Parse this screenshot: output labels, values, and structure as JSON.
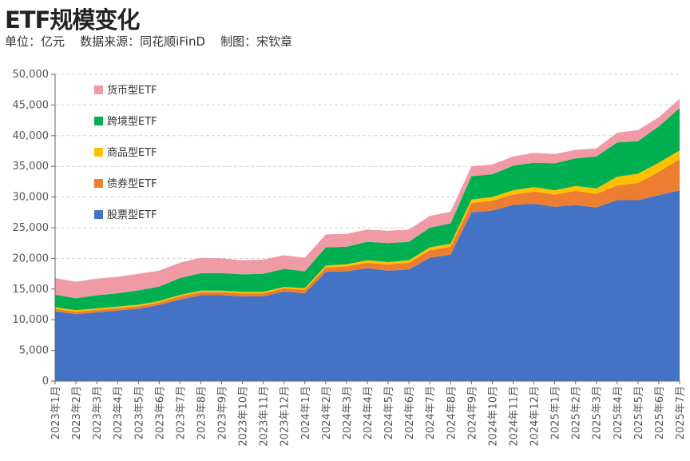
{
  "title": "ETF规模变化",
  "subtitle": "单位：亿元    数据来源：同花顺iFinD    制图：宋钦章",
  "chart_data": {
    "type": "area",
    "stacked": true,
    "title": "ETF规模变化",
    "ylabel": "亿元",
    "ylim": [
      0,
      50000
    ],
    "yticks": [
      0,
      5000,
      10000,
      15000,
      20000,
      25000,
      30000,
      35000,
      40000,
      45000,
      50000
    ],
    "ytick_labels": [
      "0",
      "5,000",
      "10,000",
      "15,000",
      "20,000",
      "25,000",
      "30,000",
      "35,000",
      "40,000",
      "45,000",
      "50,000"
    ],
    "grid": true,
    "legend_position": "top-left",
    "categories": [
      "2023年1月",
      "2023年2月",
      "2023年3月",
      "2023年4月",
      "2023年5月",
      "2023年6月",
      "2023年7月",
      "2023年8月",
      "2023年9月",
      "2023年10月",
      "2023年11月",
      "2023年12月",
      "2024年1月",
      "2024年2月",
      "2024年3月",
      "2024年4月",
      "2024年5月",
      "2024年6月",
      "2024年7月",
      "2024年8月",
      "2024年9月",
      "2024年10月",
      "2024年11月",
      "2024年12月",
      "2025年1月",
      "2025年2月",
      "2025年3月",
      "2025年4月",
      "2025年5月",
      "2025年6月",
      "2025年7月"
    ],
    "series": [
      {
        "name": "股票型ETF",
        "color": "#4472c4",
        "values": [
          11400,
          10900,
          11200,
          11500,
          11800,
          12400,
          13300,
          14000,
          14000,
          13800,
          13800,
          14600,
          14300,
          17800,
          17900,
          18400,
          18000,
          18200,
          20100,
          20600,
          27500,
          27800,
          28700,
          28900,
          28400,
          28700,
          28300,
          29500,
          29500,
          30300,
          31100
        ]
      },
      {
        "name": "债券型ETF",
        "color": "#ed7d31",
        "values": [
          400,
          400,
          400,
          400,
          400,
          400,
          500,
          500,
          500,
          500,
          500,
          500,
          600,
          700,
          800,
          900,
          1000,
          1100,
          1200,
          1300,
          1500,
          1600,
          1700,
          2000,
          2000,
          2300,
          2200,
          2400,
          2800,
          3800,
          5100
        ]
      },
      {
        "name": "商品型ETF",
        "color": "#ffc000",
        "values": [
          250,
          250,
          250,
          250,
          250,
          250,
          250,
          250,
          250,
          250,
          250,
          250,
          250,
          350,
          350,
          400,
          400,
          400,
          500,
          500,
          600,
          600,
          700,
          700,
          700,
          800,
          900,
          1400,
          1500,
          1500,
          1400
        ]
      },
      {
        "name": "跨境型ETF",
        "color": "#00b050",
        "values": [
          2050,
          1950,
          2150,
          2150,
          2350,
          2350,
          2750,
          2850,
          2850,
          2850,
          2950,
          2950,
          2750,
          2950,
          2850,
          3000,
          3100,
          3000,
          3200,
          3300,
          3800,
          3700,
          4000,
          4000,
          4400,
          4500,
          5200,
          5600,
          5300,
          5900,
          6900
        ]
      },
      {
        "name": "货币型ETF",
        "color": "#ef9aa5",
        "values": [
          2700,
          2700,
          2700,
          2700,
          2700,
          2600,
          2500,
          2500,
          2400,
          2300,
          2300,
          2200,
          2200,
          2100,
          2100,
          2000,
          2000,
          2000,
          1900,
          1900,
          1600,
          1600,
          1500,
          1600,
          1500,
          1400,
          1300,
          1600,
          1800,
          1500,
          1500
        ]
      }
    ]
  }
}
